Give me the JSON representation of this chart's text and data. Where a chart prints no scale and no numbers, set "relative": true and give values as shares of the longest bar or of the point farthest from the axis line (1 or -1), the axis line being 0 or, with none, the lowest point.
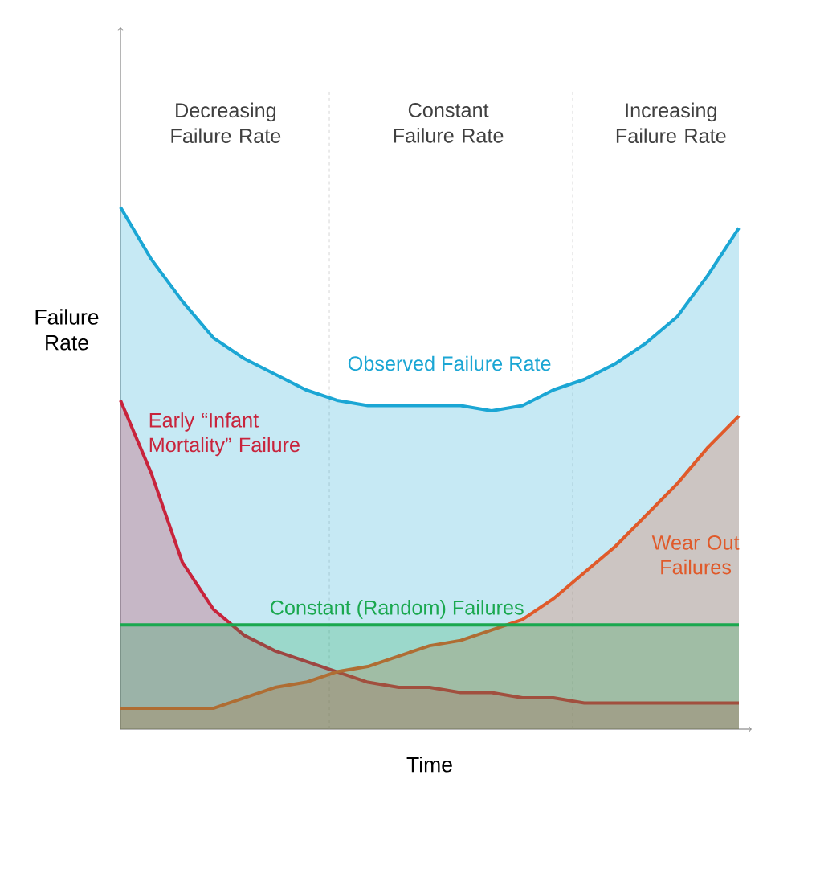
{
  "chart_data": {
    "type": "area",
    "relative": true,
    "xlabel": "Time",
    "ylabel": "Failure Rate",
    "categories": [
      null,
      null,
      null,
      null,
      null,
      null,
      null,
      null,
      null,
      null,
      null,
      null,
      null,
      null,
      null,
      null,
      null,
      null,
      null,
      null,
      null
    ],
    "series": [
      {
        "name": "Observed Failure Rate",
        "color": "#1ba6d4",
        "values": [
          1.0,
          0.9,
          0.82,
          0.75,
          0.71,
          0.68,
          0.65,
          0.63,
          0.62,
          0.62,
          0.62,
          0.62,
          0.61,
          0.62,
          0.65,
          0.67,
          0.7,
          0.74,
          0.79,
          0.87,
          0.96
        ]
      },
      {
        "name": "Early “Infant Mortality” Failure",
        "color": "#c8243c",
        "values": [
          0.63,
          0.49,
          0.32,
          0.23,
          0.18,
          0.15,
          0.13,
          0.11,
          0.09,
          0.08,
          0.08,
          0.07,
          0.07,
          0.06,
          0.06,
          0.05,
          0.05,
          0.05,
          0.05,
          0.05,
          0.05
        ]
      },
      {
        "name": "Wear Out Failures",
        "color": "#e05a2a",
        "values": [
          0.04,
          0.04,
          0.04,
          0.04,
          0.06,
          0.08,
          0.09,
          0.11,
          0.12,
          0.14,
          0.16,
          0.17,
          0.19,
          0.21,
          0.25,
          0.3,
          0.35,
          0.41,
          0.47,
          0.54,
          0.6
        ]
      },
      {
        "name": "Constant (Random) Failures",
        "color": "#1aa84f",
        "values": [
          0.2,
          0.2,
          0.2,
          0.2,
          0.2,
          0.2,
          0.2,
          0.2,
          0.2,
          0.2,
          0.2,
          0.2,
          0.2,
          0.2,
          0.2,
          0.2,
          0.2,
          0.2,
          0.2,
          0.2,
          0.2
        ]
      }
    ],
    "annotations": [
      "Decreasing Failure Rate",
      "Constant Failure Rate",
      "Increasing Failure Rate"
    ],
    "marker": "none",
    "line_style": "solid",
    "tick_labels": false
  }
}
